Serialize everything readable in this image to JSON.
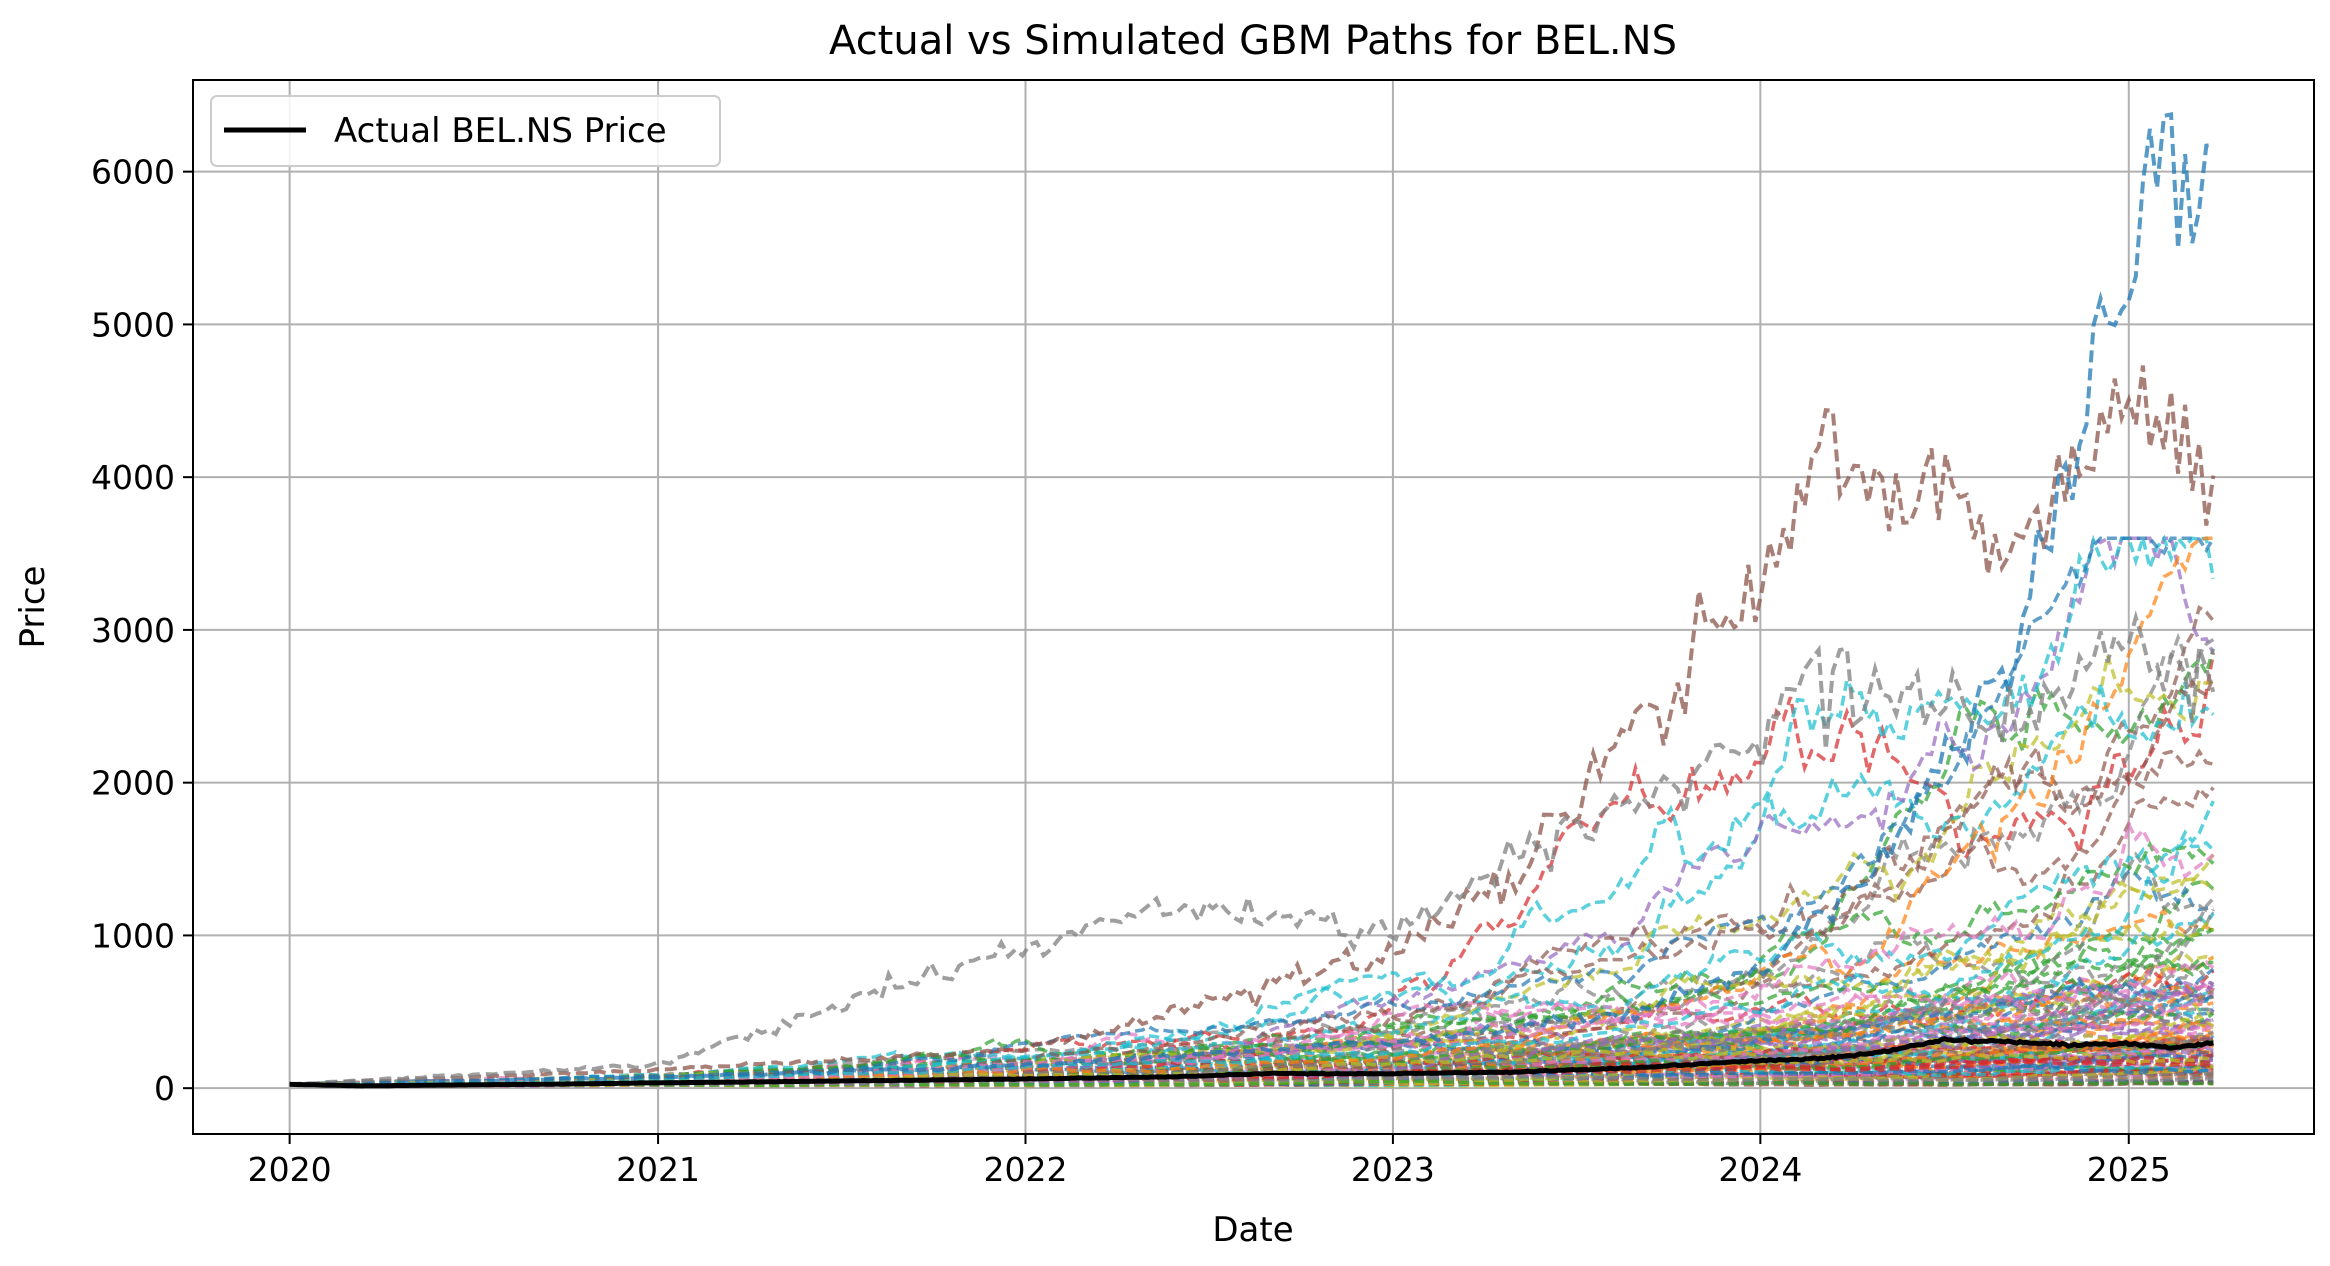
{
  "chart_data": {
    "type": "line",
    "title": "Actual vs Simulated GBM Paths for BEL.NS",
    "xlabel": "Date",
    "ylabel": "Price",
    "xlim": [
      "2019-09-27",
      "2025-07-04"
    ],
    "ylim": [
      -300,
      6600
    ],
    "x_ticks": [
      "2020",
      "2021",
      "2022",
      "2023",
      "2024",
      "2025"
    ],
    "x_tick_dates": [
      "2020-01-01",
      "2021-01-01",
      "2022-01-01",
      "2023-01-01",
      "2024-01-01",
      "2025-01-01"
    ],
    "y_ticks": [
      0,
      1000,
      2000,
      3000,
      4000,
      5000,
      6000
    ],
    "y_tick_labels": [
      "0",
      "1000",
      "2000",
      "3000",
      "4000",
      "5000",
      "6000"
    ],
    "grid": true,
    "legend": {
      "placement": "top-left",
      "entries": [
        "Actual BEL.NS Price"
      ]
    },
    "colors": {
      "actual": "#000000",
      "simulated": [
        "#1f77b4",
        "#ff7f0e",
        "#2ca02c",
        "#d62728",
        "#9467bd",
        "#8c564b",
        "#e377c2",
        "#7f7f7f",
        "#bcbd22",
        "#17becf"
      ]
    },
    "series": [
      {
        "name": "Actual BEL.NS Price",
        "style": "solid",
        "x": [
          "2020-01-01",
          "2020-03-15",
          "2020-06-01",
          "2020-09-01",
          "2021-01-01",
          "2021-06-01",
          "2022-01-01",
          "2022-06-01",
          "2022-09-01",
          "2023-01-01",
          "2023-05-01",
          "2023-09-01",
          "2024-01-01",
          "2024-03-01",
          "2024-05-01",
          "2024-07-01",
          "2024-09-01",
          "2024-11-01",
          "2025-01-01",
          "2025-02-15",
          "2025-03-28"
        ],
        "values": [
          25,
          15,
          20,
          25,
          35,
          45,
          60,
          75,
          95,
          95,
          105,
          135,
          180,
          195,
          235,
          320,
          300,
          285,
          290,
          265,
          300
        ]
      },
      {
        "style": "dashed",
        "x": [
          "2020-01-01",
          "2021-01-01",
          "2022-01-01",
          "2022-06-01",
          "2023-01-01",
          "2023-05-01",
          "2023-09-01",
          "2024-01-01",
          "2024-03-01",
          "2024-05-01",
          "2024-07-01",
          "2024-09-01",
          "2024-11-01",
          "2025-01-01",
          "2025-02-15",
          "2025-03-28"
        ],
        "values": [
          25,
          120,
          250,
          500,
          900,
          1400,
          2400,
          3400,
          4200,
          3800,
          4000,
          3500,
          3900,
          4500,
          4200,
          3800
        ]
      },
      {
        "style": "dashed",
        "x": [
          "2020-01-01",
          "2021-01-01",
          "2022-01-01",
          "2023-01-01",
          "2023-09-01",
          "2024-01-01",
          "2024-05-01",
          "2024-09-01",
          "2024-11-01",
          "2025-01-01",
          "2025-02-01",
          "2025-03-28"
        ],
        "values": [
          25,
          70,
          150,
          300,
          500,
          800,
          1500,
          2800,
          4200,
          5200,
          6200,
          5800
        ]
      },
      {
        "style": "dashed",
        "x": [
          "2020-01-01",
          "2021-01-01",
          "2021-09-01",
          "2022-06-01",
          "2023-01-01",
          "2023-06-01",
          "2024-01-01",
          "2024-03-01",
          "2024-09-01",
          "2025-01-01",
          "2025-03-28"
        ],
        "values": [
          25,
          150,
          680,
          1200,
          1000,
          1600,
          2300,
          2800,
          2400,
          2900,
          2600
        ]
      }
    ]
  }
}
